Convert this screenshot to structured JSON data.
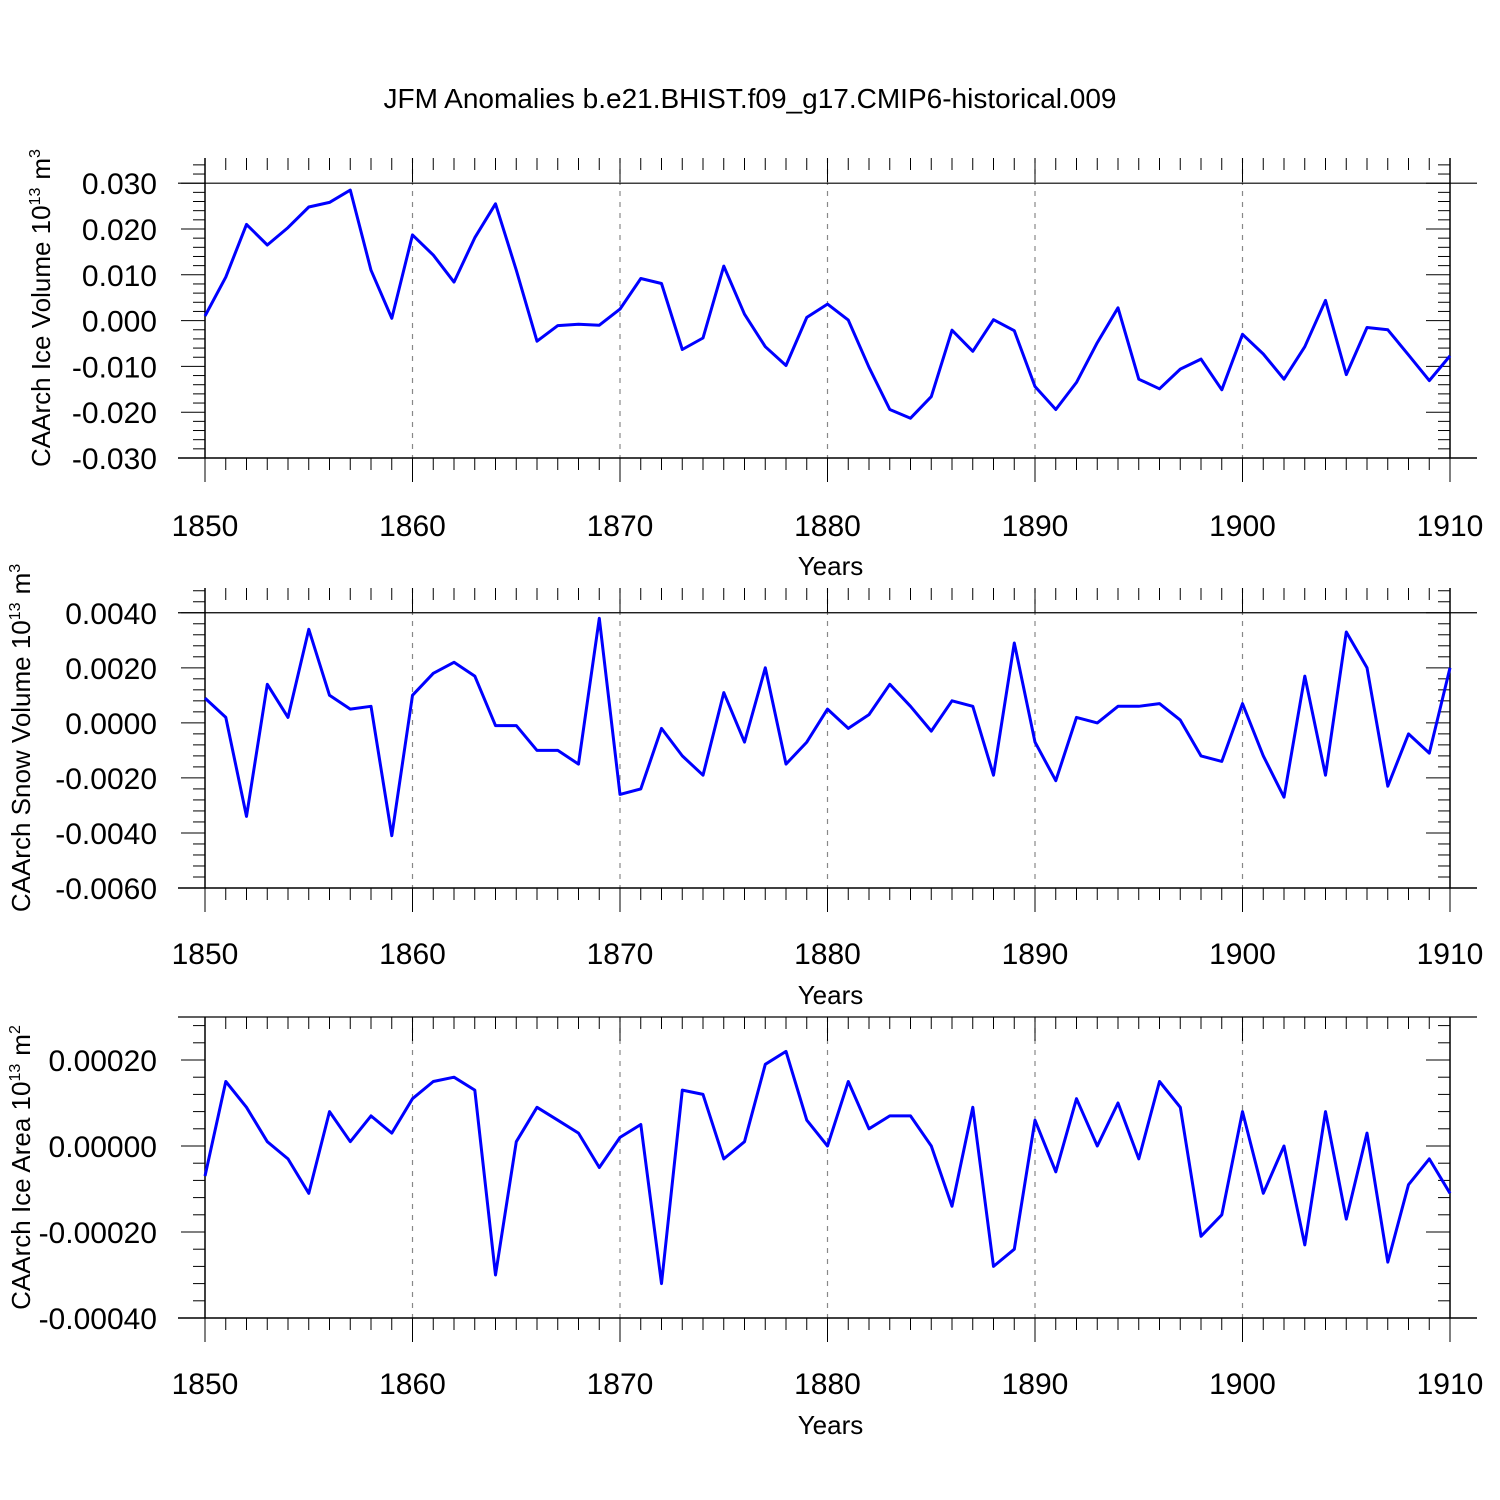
{
  "title": "JFM Anomalies b.e21.BHIST.f09_g17.CMIP6-historical.009",
  "colors": {
    "line": "#0000ff",
    "axis": "#000000",
    "grid": "#888888",
    "background": "#ffffff"
  },
  "chart_data": [
    {
      "type": "line",
      "title": "",
      "xlabel": "Years",
      "ylabel": "CAArch Ice Volume 10",
      "ylabel_sup": "13",
      "ylabel_unit": "m",
      "ylabel_unit_sup": "3",
      "xlim": [
        1850,
        1910
      ],
      "ylim": [
        -0.03,
        0.0355
      ],
      "xticks": [
        1850,
        1860,
        1870,
        1880,
        1890,
        1900,
        1910
      ],
      "xtick_labels": [
        "1850",
        "1860",
        "1870",
        "1880",
        "1890",
        "1900",
        "1910"
      ],
      "yticks": [
        0.03,
        0.02,
        0.01,
        0.0,
        -0.01,
        -0.02,
        -0.03
      ],
      "ytick_labels": [
        "0.030",
        "0.020",
        "0.010",
        "0.000",
        "-0.010",
        "-0.020",
        "-0.030"
      ],
      "ref_line": 0.03,
      "x_grid": "dashed at major ticks",
      "series": [
        {
          "x": [
            1850,
            1851,
            1852,
            1853,
            1854,
            1855,
            1856,
            1857,
            1858,
            1859,
            1860,
            1861,
            1862,
            1863,
            1864,
            1865,
            1866,
            1867,
            1868,
            1869,
            1870,
            1871,
            1872,
            1873,
            1874,
            1875,
            1876,
            1877,
            1878,
            1879,
            1880,
            1881,
            1882,
            1883,
            1884,
            1885,
            1886,
            1887,
            1888,
            1889,
            1890,
            1891,
            1892,
            1893,
            1894,
            1895,
            1896,
            1897,
            1898,
            1899,
            1900,
            1901,
            1902,
            1903,
            1904,
            1905,
            1906,
            1907,
            1908,
            1909,
            1910
          ],
          "y": [
            0.001,
            0.0095,
            0.021,
            0.0165,
            0.0203,
            0.0248,
            0.0258,
            0.0285,
            0.011,
            0.0005,
            0.0187,
            0.0143,
            0.0084,
            0.0181,
            0.0255,
            0.011,
            -0.0045,
            -0.0011,
            -0.0008,
            -0.001,
            0.0025,
            0.0092,
            0.0081,
            -0.0063,
            -0.0038,
            0.0119,
            0.0014,
            -0.0057,
            -0.0098,
            0.0007,
            0.0036,
            0.0001,
            -0.0102,
            -0.0194,
            -0.0213,
            -0.0166,
            -0.0021,
            -0.0067,
            0.0002,
            -0.0022,
            -0.0144,
            -0.0194,
            -0.0135,
            -0.0048,
            0.0028,
            -0.0128,
            -0.0149,
            -0.0106,
            -0.0084,
            -0.0151,
            -0.003,
            -0.0073,
            -0.0128,
            -0.0057,
            0.0044,
            -0.0118,
            -0.0015,
            -0.002,
            -0.0075,
            -0.0131,
            -0.0077
          ]
        }
      ]
    },
    {
      "type": "line",
      "title": "",
      "xlabel": "Years",
      "ylabel": "CAArch Snow Volume 10",
      "ylabel_sup": "13",
      "ylabel_unit": "m",
      "ylabel_unit_sup": "3",
      "xlim": [
        1850,
        1910
      ],
      "ylim": [
        -0.006,
        0.0049
      ],
      "xticks": [
        1850,
        1860,
        1870,
        1880,
        1890,
        1900,
        1910
      ],
      "xtick_labels": [
        "1850",
        "1860",
        "1870",
        "1880",
        "1890",
        "1900",
        "1910"
      ],
      "yticks": [
        0.004,
        0.002,
        0.0,
        -0.002,
        -0.004,
        -0.006
      ],
      "ytick_labels": [
        "0.0040",
        "0.0020",
        "0.0000",
        "-0.0020",
        "-0.0040",
        "-0.0060"
      ],
      "ref_line": 0.004,
      "x_grid": "dashed at major ticks",
      "series": [
        {
          "x": [
            1850,
            1851,
            1852,
            1853,
            1854,
            1855,
            1856,
            1857,
            1858,
            1859,
            1860,
            1861,
            1862,
            1863,
            1864,
            1865,
            1866,
            1867,
            1868,
            1869,
            1870,
            1871,
            1872,
            1873,
            1874,
            1875,
            1876,
            1877,
            1878,
            1879,
            1880,
            1881,
            1882,
            1883,
            1884,
            1885,
            1886,
            1887,
            1888,
            1889,
            1890,
            1891,
            1892,
            1893,
            1894,
            1895,
            1896,
            1897,
            1898,
            1899,
            1900,
            1901,
            1902,
            1903,
            1904,
            1905,
            1906,
            1907,
            1908,
            1909,
            1910
          ],
          "y": [
            0.0009,
            0.0002,
            -0.0034,
            0.0014,
            0.0002,
            0.0034,
            0.001,
            0.0005,
            0.0006,
            -0.0041,
            0.001,
            0.0018,
            0.0022,
            0.0017,
            -0.0001,
            -0.0001,
            -0.001,
            -0.001,
            -0.0015,
            0.0038,
            -0.0026,
            -0.0024,
            -0.0002,
            -0.0012,
            -0.0019,
            0.0011,
            -0.0007,
            0.002,
            -0.0015,
            -0.0007,
            0.0005,
            -0.0002,
            0.0003,
            0.0014,
            0.0006,
            -0.0003,
            0.0008,
            0.0006,
            -0.0019,
            0.0029,
            -0.0007,
            -0.0021,
            0.0002,
            0.0,
            0.0006,
            0.0006,
            0.0007,
            0.0001,
            -0.0012,
            -0.0014,
            0.0007,
            -0.0012,
            -0.0027,
            0.0017,
            -0.0019,
            0.0033,
            0.002,
            -0.0023,
            -0.0004,
            -0.0011,
            0.002
          ]
        }
      ]
    },
    {
      "type": "line",
      "title": "",
      "xlabel": "Years",
      "ylabel": "CAArch Ice Area 10",
      "ylabel_sup": "13",
      "ylabel_unit": "m",
      "ylabel_unit_sup": "2",
      "xlim": [
        1850,
        1910
      ],
      "ylim": [
        -0.0004,
        0.0003
      ],
      "xticks": [
        1850,
        1860,
        1870,
        1880,
        1890,
        1900,
        1910
      ],
      "xtick_labels": [
        "1850",
        "1860",
        "1870",
        "1880",
        "1890",
        "1900",
        "1910"
      ],
      "yticks": [
        0.0002,
        0.0,
        -0.0002,
        -0.0004
      ],
      "ytick_labels": [
        "0.00020",
        "0.00000",
        "-0.00020",
        "-0.00040"
      ],
      "ref_line": 0.0003,
      "x_grid": "dashed at major ticks",
      "series": [
        {
          "x": [
            1850,
            1851,
            1852,
            1853,
            1854,
            1855,
            1856,
            1857,
            1858,
            1859,
            1860,
            1861,
            1862,
            1863,
            1864,
            1865,
            1866,
            1867,
            1868,
            1869,
            1870,
            1871,
            1872,
            1873,
            1874,
            1875,
            1876,
            1877,
            1878,
            1879,
            1880,
            1881,
            1882,
            1883,
            1884,
            1885,
            1886,
            1887,
            1888,
            1889,
            1890,
            1891,
            1892,
            1893,
            1894,
            1895,
            1896,
            1897,
            1898,
            1899,
            1900,
            1901,
            1902,
            1903,
            1904,
            1905,
            1906,
            1907,
            1908,
            1909,
            1910
          ],
          "y": [
            -7e-05,
            0.00015,
            9e-05,
            1e-05,
            -3e-05,
            -0.00011,
            8e-05,
            1e-05,
            7e-05,
            3e-05,
            0.00011,
            0.00015,
            0.00016,
            0.00013,
            -0.0003,
            1e-05,
            9e-05,
            6e-05,
            3e-05,
            -5e-05,
            2e-05,
            5e-05,
            -0.00032,
            0.00013,
            0.00012,
            -3e-05,
            1e-05,
            0.00019,
            0.00022,
            6e-05,
            0.0,
            0.00015,
            4e-05,
            7e-05,
            7e-05,
            0.0,
            -0.00014,
            9e-05,
            -0.00028,
            -0.00024,
            6e-05,
            -6e-05,
            0.00011,
            0.0,
            0.0001,
            -3e-05,
            0.00015,
            9e-05,
            -0.00021,
            -0.00016,
            8e-05,
            -0.00011,
            0.0,
            -0.00023,
            8e-05,
            -0.00017,
            3e-05,
            -0.00027,
            -9e-05,
            -3e-05,
            -0.00011
          ]
        }
      ]
    }
  ]
}
